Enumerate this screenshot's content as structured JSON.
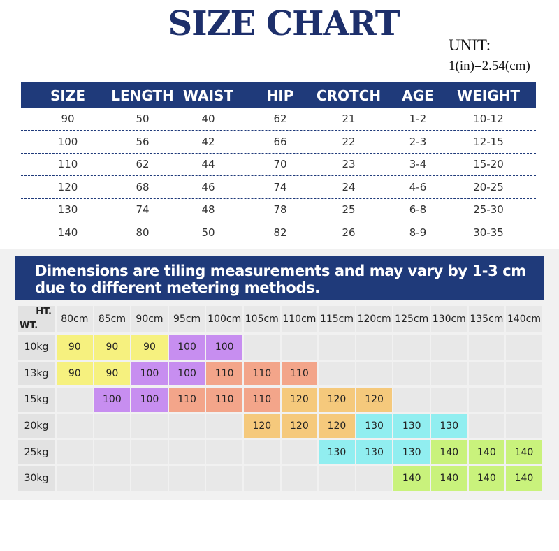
{
  "title": "SIZE CHART",
  "unit": {
    "label": "UNIT:",
    "conversion": "1(in)=2.54(cm)"
  },
  "size_table": {
    "headers": [
      "SIZE",
      "LENGTH",
      "WAIST",
      "HIP",
      "CROTCH",
      "AGE",
      "WEIGHT"
    ],
    "rows": [
      [
        "90",
        "50",
        "40",
        "62",
        "21",
        "1-2",
        "10-12"
      ],
      [
        "100",
        "56",
        "42",
        "66",
        "22",
        "2-3",
        "12-15"
      ],
      [
        "110",
        "62",
        "44",
        "70",
        "23",
        "3-4",
        "15-20"
      ],
      [
        "120",
        "68",
        "46",
        "74",
        "24",
        "4-6",
        "20-25"
      ],
      [
        "130",
        "74",
        "48",
        "78",
        "25",
        "6-8",
        "25-30"
      ],
      [
        "140",
        "80",
        "50",
        "82",
        "26",
        "8-9",
        "30-35"
      ]
    ]
  },
  "note": {
    "lines": [
      "Dimensions are tiling measurements and may vary by 1-3 cm",
      "due to different metering methods."
    ]
  },
  "fit_grid": {
    "corner_top": "HT.",
    "corner_bottom": "WT.",
    "heights": [
      "80cm",
      "85cm",
      "90cm",
      "95cm",
      "100cm",
      "105cm",
      "110cm",
      "115cm",
      "120cm",
      "125cm",
      "130cm",
      "135cm",
      "140cm"
    ],
    "colors": {
      "90": "#f6f17f",
      "100": "#c78ef0",
      "110": "#f3a58a",
      "120": "#f5c97c",
      "130": "#91eef0",
      "140": "#c9f27c"
    },
    "rows": [
      {
        "weight": "10kg",
        "cells": [
          90,
          90,
          90,
          100,
          100,
          null,
          null,
          null,
          null,
          null,
          null,
          null,
          null
        ]
      },
      {
        "weight": "13kg",
        "cells": [
          90,
          90,
          100,
          100,
          110,
          110,
          110,
          null,
          null,
          null,
          null,
          null,
          null
        ]
      },
      {
        "weight": "15kg",
        "cells": [
          null,
          100,
          100,
          110,
          110,
          110,
          120,
          120,
          120,
          null,
          null,
          null,
          null
        ]
      },
      {
        "weight": "20kg",
        "cells": [
          null,
          null,
          null,
          null,
          null,
          120,
          120,
          120,
          130,
          130,
          130,
          null,
          null
        ]
      },
      {
        "weight": "25kg",
        "cells": [
          null,
          null,
          null,
          null,
          null,
          null,
          null,
          130,
          130,
          130,
          140,
          140,
          140
        ]
      },
      {
        "weight": "30kg",
        "cells": [
          null,
          null,
          null,
          null,
          null,
          null,
          null,
          null,
          null,
          140,
          140,
          140,
          140
        ]
      }
    ]
  }
}
